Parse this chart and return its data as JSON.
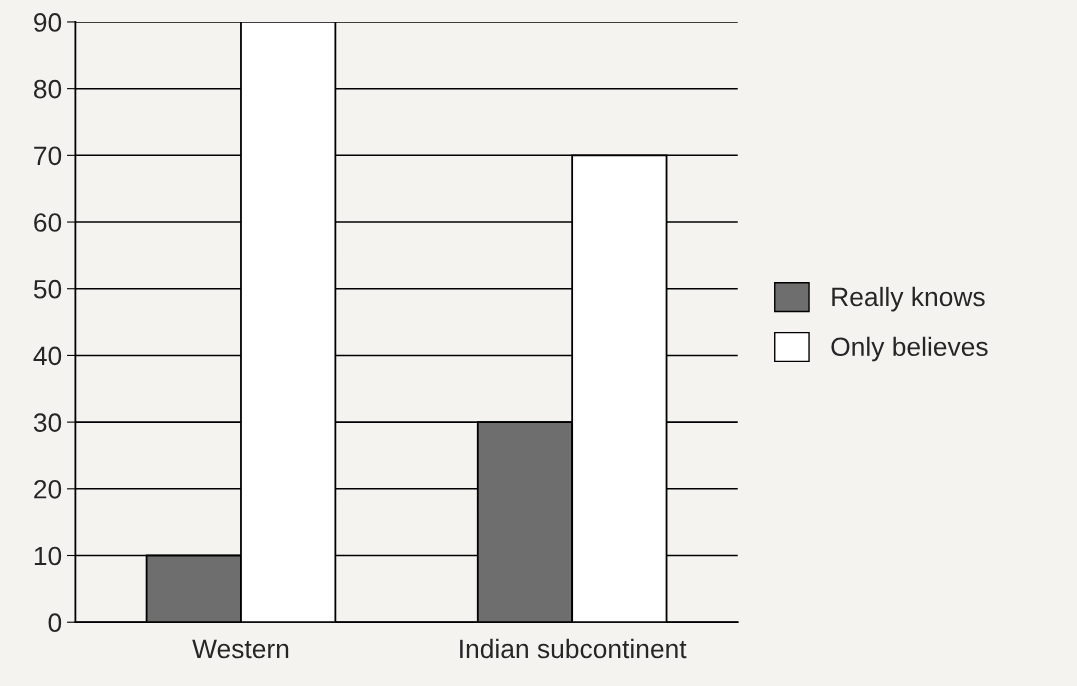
{
  "chart_data": {
    "type": "bar",
    "categories": [
      "Western",
      "Indian subcontinent"
    ],
    "series": [
      {
        "name": "Really knows",
        "color": "#6e6e6e",
        "values": [
          10,
          30
        ]
      },
      {
        "name": "Only believes",
        "color": "#ffffff",
        "values": [
          90,
          70
        ]
      }
    ],
    "ylim": [
      0,
      90
    ],
    "yticks": [
      0,
      10,
      20,
      30,
      40,
      50,
      60,
      70,
      80,
      90
    ],
    "grid": "y",
    "legend": "right"
  }
}
